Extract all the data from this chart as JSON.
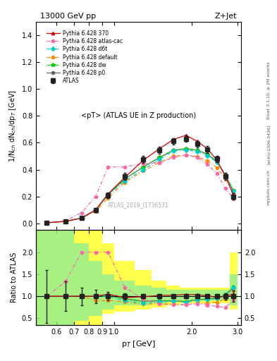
{
  "title_top": "13000 GeV pp",
  "title_right": "Z+Jet",
  "plot_title": "<pT> (ATLAS UE in Z production)",
  "ylabel_main": "1/N$_{ch}$ dN$_{ch}$/dp$_T$ [GeV]",
  "ylabel_ratio": "Ratio to ATLAS",
  "xlabel": "p$_T$ [GeV]",
  "watermark": "ATLAS_2019_I1736531",
  "rivet_label": "Rivet 3.1.10, ≥ 2M events",
  "arxiv_label": "[arXiv:1306.3436]",
  "mcplots_label": "mcplots.cern.ch",
  "ylim_main": [
    -0.05,
    1.5
  ],
  "ylim_ratio": [
    0.35,
    2.5
  ],
  "yticks_main": [
    0.0,
    0.2,
    0.4,
    0.6,
    0.8,
    1.0,
    1.2,
    1.4
  ],
  "yticks_ratio": [
    0.5,
    1.0,
    1.5,
    2.0
  ],
  "xlim": [
    0.5,
    3.1
  ],
  "atlas_x": [
    0.55,
    0.65,
    0.75,
    0.85,
    0.95,
    1.1,
    1.3,
    1.5,
    1.7,
    1.9,
    2.1,
    2.3,
    2.5,
    2.7,
    2.9
  ],
  "atlas_y": [
    0.005,
    0.015,
    0.04,
    0.1,
    0.21,
    0.35,
    0.475,
    0.545,
    0.61,
    0.63,
    0.59,
    0.55,
    0.48,
    0.35,
    0.2
  ],
  "atlas_yerr": [
    0.003,
    0.005,
    0.008,
    0.015,
    0.02,
    0.025,
    0.025,
    0.025,
    0.025,
    0.025,
    0.025,
    0.025,
    0.025,
    0.025,
    0.025
  ],
  "py370_x": [
    0.55,
    0.65,
    0.75,
    0.85,
    0.95,
    1.1,
    1.3,
    1.5,
    1.7,
    1.9,
    2.1,
    2.3,
    2.5,
    2.7,
    2.9
  ],
  "py370_y": [
    0.005,
    0.015,
    0.04,
    0.1,
    0.22,
    0.34,
    0.47,
    0.555,
    0.625,
    0.655,
    0.61,
    0.555,
    0.47,
    0.35,
    0.21
  ],
  "pyatlas_x": [
    0.55,
    0.65,
    0.75,
    0.85,
    0.95,
    1.1,
    1.3,
    1.5,
    1.7,
    1.9,
    2.1,
    2.3,
    2.5,
    2.7,
    2.9
  ],
  "pyatlas_y": [
    0.005,
    0.02,
    0.08,
    0.2,
    0.42,
    0.42,
    0.445,
    0.45,
    0.49,
    0.51,
    0.49,
    0.44,
    0.37,
    0.26,
    0.185
  ],
  "pyd6t_x": [
    0.55,
    0.65,
    0.75,
    0.85,
    0.95,
    1.1,
    1.3,
    1.5,
    1.7,
    1.9,
    2.1,
    2.3,
    2.5,
    2.7,
    2.9
  ],
  "pyd6t_y": [
    0.005,
    0.015,
    0.04,
    0.1,
    0.21,
    0.315,
    0.4,
    0.475,
    0.54,
    0.545,
    0.535,
    0.505,
    0.455,
    0.36,
    0.24
  ],
  "pydef_x": [
    0.55,
    0.65,
    0.75,
    0.85,
    0.95,
    1.1,
    1.3,
    1.5,
    1.7,
    1.9,
    2.1,
    2.3,
    2.5,
    2.7,
    2.9
  ],
  "pydef_y": [
    0.005,
    0.015,
    0.04,
    0.09,
    0.19,
    0.305,
    0.39,
    0.455,
    0.5,
    0.51,
    0.495,
    0.465,
    0.415,
    0.33,
    0.225
  ],
  "pydw_x": [
    0.55,
    0.65,
    0.75,
    0.85,
    0.95,
    1.1,
    1.3,
    1.5,
    1.7,
    1.9,
    2.1,
    2.3,
    2.5,
    2.7,
    2.9
  ],
  "pydw_y": [
    0.005,
    0.015,
    0.04,
    0.1,
    0.215,
    0.33,
    0.42,
    0.49,
    0.545,
    0.555,
    0.545,
    0.515,
    0.46,
    0.36,
    0.245
  ],
  "pyp0_x": [
    0.55,
    0.65,
    0.75,
    0.85,
    0.95,
    1.1,
    1.3,
    1.5,
    1.7,
    1.9,
    2.1,
    2.3,
    2.5,
    2.7,
    2.9
  ],
  "pyp0_y": [
    0.005,
    0.015,
    0.04,
    0.1,
    0.215,
    0.33,
    0.42,
    0.49,
    0.545,
    0.555,
    0.545,
    0.515,
    0.46,
    0.355,
    0.24
  ],
  "color_atlas": "#222222",
  "color_370": "#cc0000",
  "color_atlas_cac": "#ff66aa",
  "color_d6t": "#00cccc",
  "color_default": "#ff8800",
  "color_dw": "#00cc00",
  "color_p0": "#666666",
  "band_x_edges": [
    0.5,
    0.6,
    0.7,
    0.8,
    0.9,
    1.0,
    1.2,
    1.4,
    1.6,
    1.8,
    2.0,
    2.2,
    2.4,
    2.6,
    2.8,
    3.0
  ],
  "band_yellow_low": [
    0.35,
    0.35,
    0.35,
    0.35,
    0.6,
    0.65,
    0.7,
    0.75,
    0.8,
    0.85,
    0.85,
    0.85,
    0.85,
    0.85,
    0.7,
    0.7
  ],
  "band_yellow_high": [
    2.5,
    2.5,
    2.5,
    2.5,
    2.2,
    1.8,
    1.6,
    1.35,
    1.25,
    1.2,
    1.2,
    1.2,
    1.2,
    1.2,
    2.0,
    2.0
  ],
  "band_green_low": [
    0.35,
    0.35,
    0.45,
    0.55,
    0.7,
    0.8,
    0.8,
    0.85,
    0.88,
    0.9,
    0.9,
    0.9,
    0.9,
    0.9,
    0.8,
    0.8
  ],
  "band_green_high": [
    2.5,
    2.5,
    2.2,
    1.8,
    1.5,
    1.35,
    1.25,
    1.2,
    1.15,
    1.15,
    1.15,
    1.15,
    1.15,
    1.15,
    1.5,
    1.5
  ]
}
